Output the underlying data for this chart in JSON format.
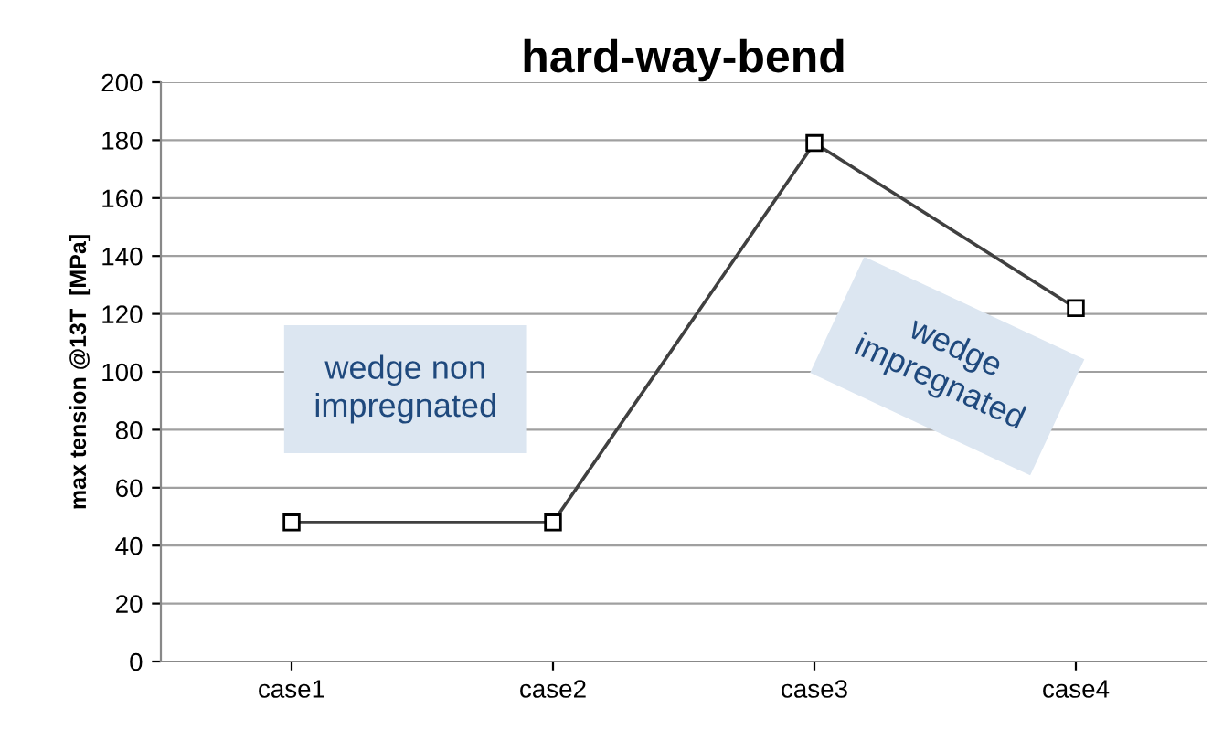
{
  "chart_data": {
    "type": "line",
    "title": "hard-way-bend",
    "ylabel": "max tension @13T  [MPa]",
    "categories": [
      "case1",
      "case2",
      "case3",
      "case4"
    ],
    "series": [
      {
        "color": "#404040",
        "values": [
          48,
          48,
          179,
          122
        ]
      }
    ],
    "ylim": [
      0,
      200
    ],
    "yticks": [
      0,
      20,
      40,
      60,
      80,
      100,
      120,
      140,
      160,
      180,
      200
    ],
    "grid": "y",
    "marker": "square",
    "line_style": "solid",
    "legend": false,
    "annotations": [
      "wedge non\nimpregnated",
      "wedge\nimpregnated"
    ]
  }
}
